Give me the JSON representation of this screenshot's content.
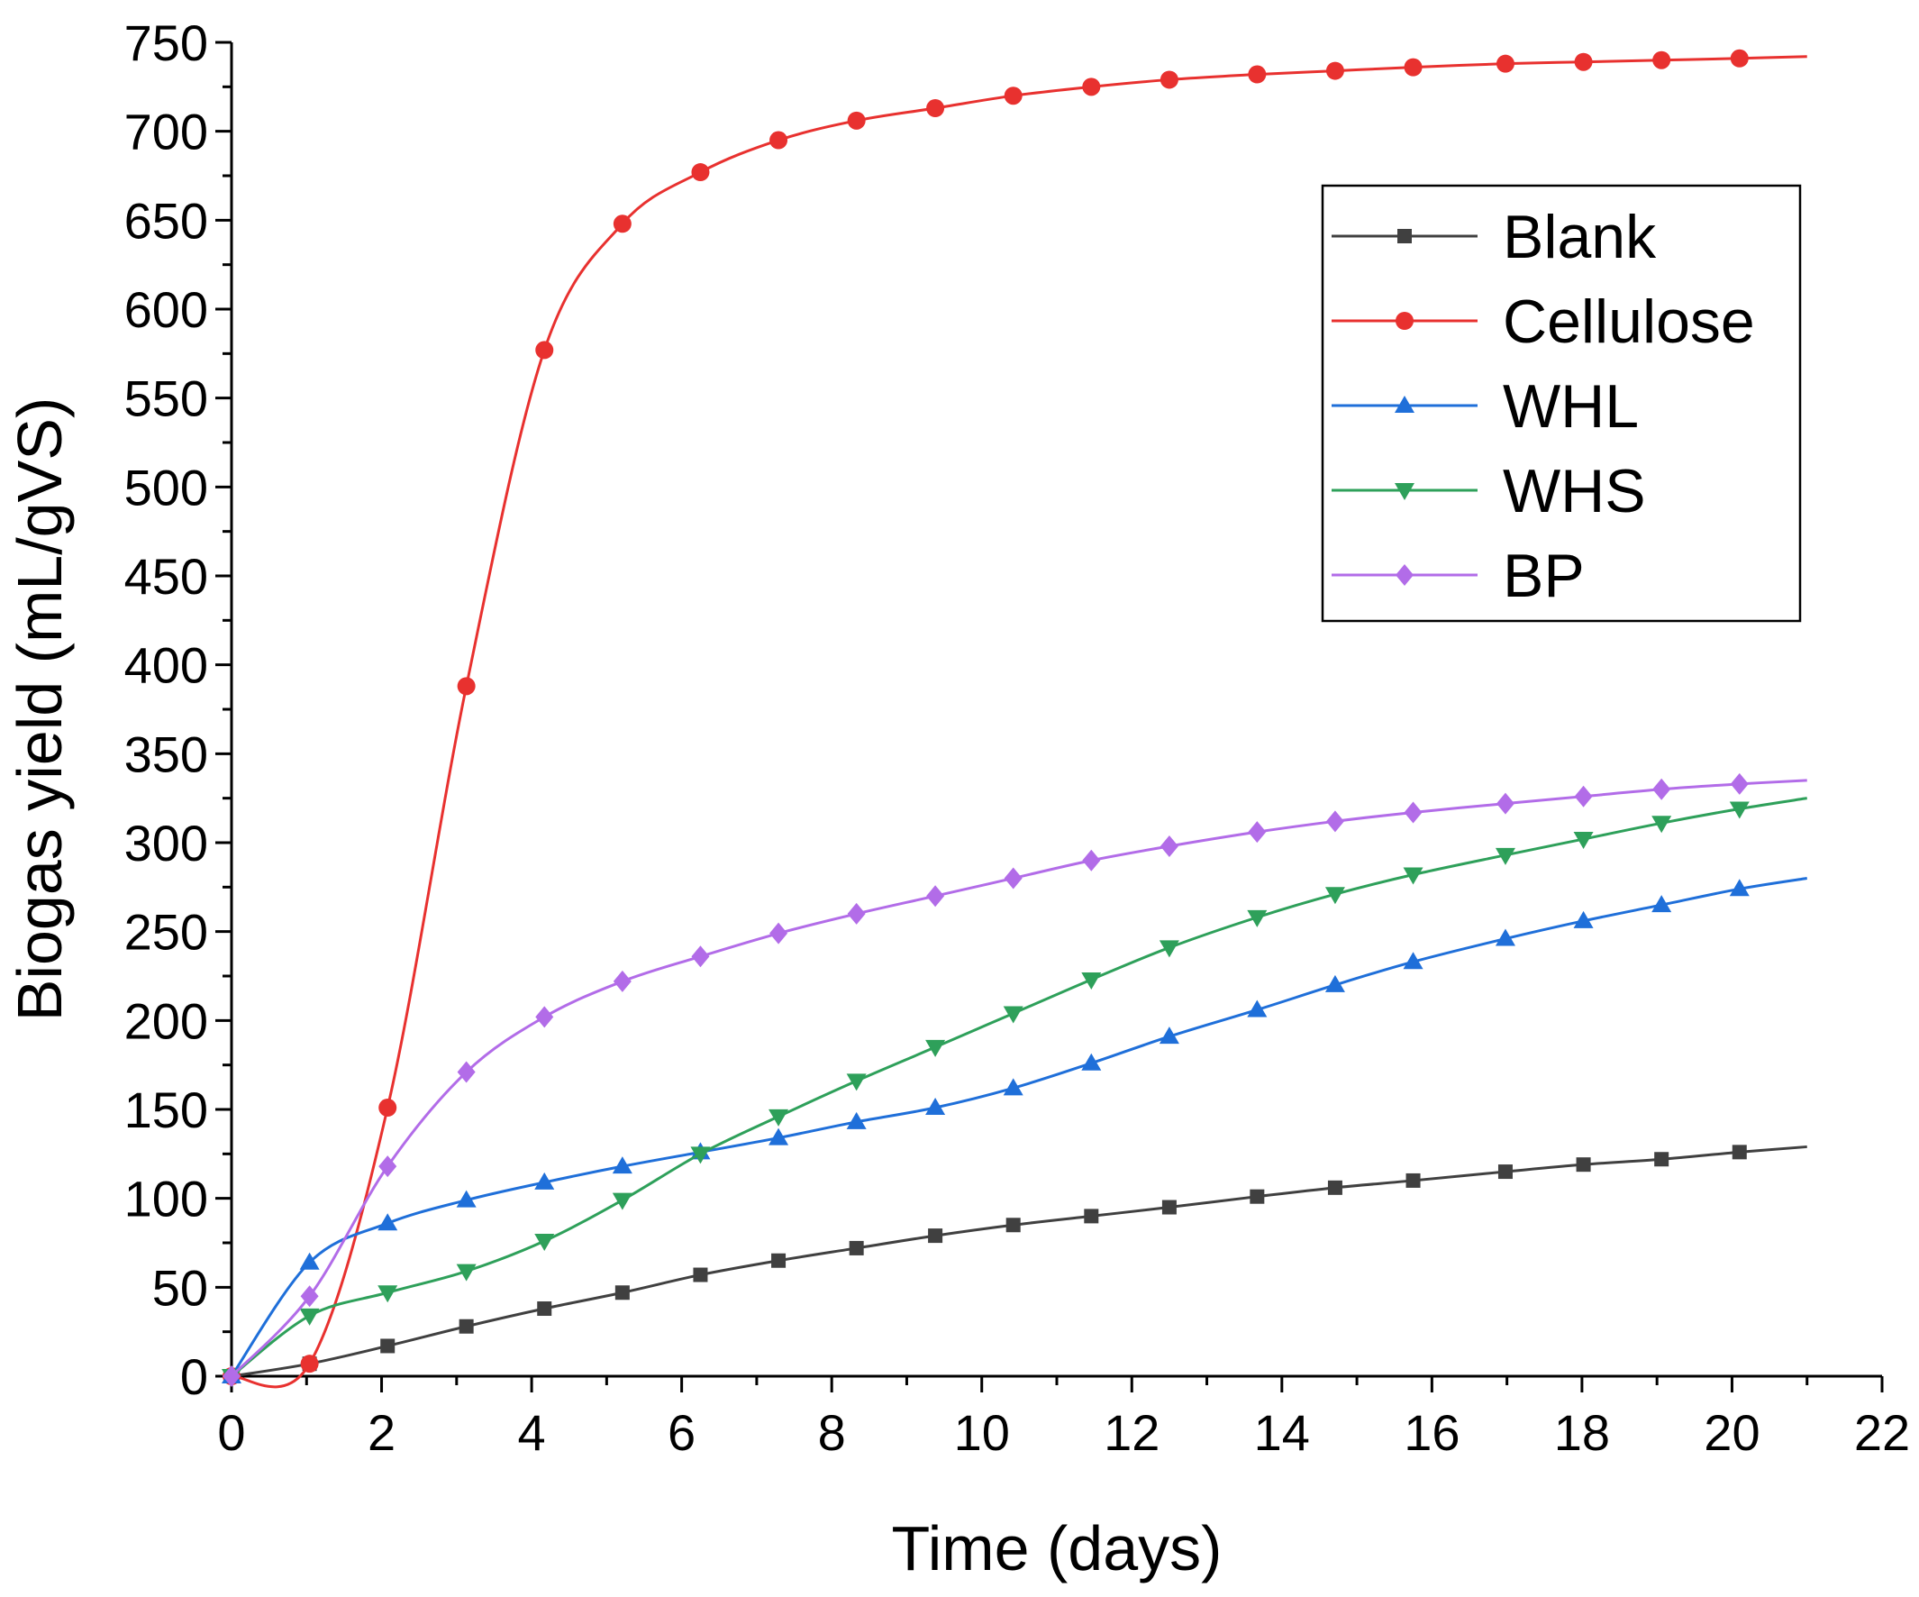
{
  "chart_data": {
    "type": "line",
    "title": "",
    "xlabel": "Time (days)",
    "ylabel": "Biogas yield (mL/gVS)",
    "xlim": [
      0,
      22
    ],
    "ylim": [
      0,
      750
    ],
    "x_ticks": [
      0,
      2,
      4,
      6,
      8,
      10,
      12,
      14,
      16,
      18,
      20,
      22
    ],
    "y_ticks": [
      0,
      50,
      100,
      150,
      200,
      250,
      300,
      350,
      400,
      450,
      500,
      550,
      600,
      650,
      700,
      750
    ],
    "grid": false,
    "legend_position": "top-right",
    "x": [
      0,
      1.04,
      2.08,
      3.13,
      4.17,
      5.21,
      6.25,
      7.29,
      8.33,
      9.38,
      10.42,
      11.46,
      12.5,
      13.67,
      14.71,
      15.75,
      16.98,
      18.02,
      19.06,
      20.1,
      21
    ],
    "series": [
      {
        "name": "Blank",
        "color": "#404040",
        "marker": "square",
        "values": [
          0,
          7,
          17,
          28,
          38,
          47,
          57,
          65,
          72,
          79,
          85,
          90,
          95,
          101,
          106,
          110,
          115,
          119,
          122,
          126,
          129
        ]
      },
      {
        "name": "Cellulose",
        "color": "#e8312f",
        "marker": "circle",
        "values": [
          0,
          7,
          151,
          388,
          577,
          648,
          677,
          695,
          706,
          713,
          720,
          725,
          729,
          732,
          734,
          736,
          738,
          739,
          740,
          741,
          742
        ]
      },
      {
        "name": "WHL",
        "color": "#1f6fd9",
        "marker": "triangle-up",
        "values": [
          0,
          64,
          86,
          99,
          109,
          118,
          126,
          134,
          143,
          151,
          162,
          176,
          191,
          206,
          220,
          233,
          246,
          256,
          265,
          274,
          280
        ]
      },
      {
        "name": "WHS",
        "color": "#2ea05a",
        "marker": "triangle-down",
        "values": [
          0,
          34,
          47,
          59,
          76,
          99,
          125,
          146,
          166,
          185,
          204,
          223,
          241,
          258,
          271,
          282,
          293,
          302,
          311,
          319,
          325
        ]
      },
      {
        "name": "BP",
        "color": "#b26ce8",
        "marker": "diamond",
        "values": [
          0,
          45,
          118,
          171,
          202,
          222,
          236,
          249,
          260,
          270,
          280,
          290,
          298,
          306,
          312,
          317,
          322,
          326,
          330,
          333,
          335
        ]
      }
    ]
  }
}
